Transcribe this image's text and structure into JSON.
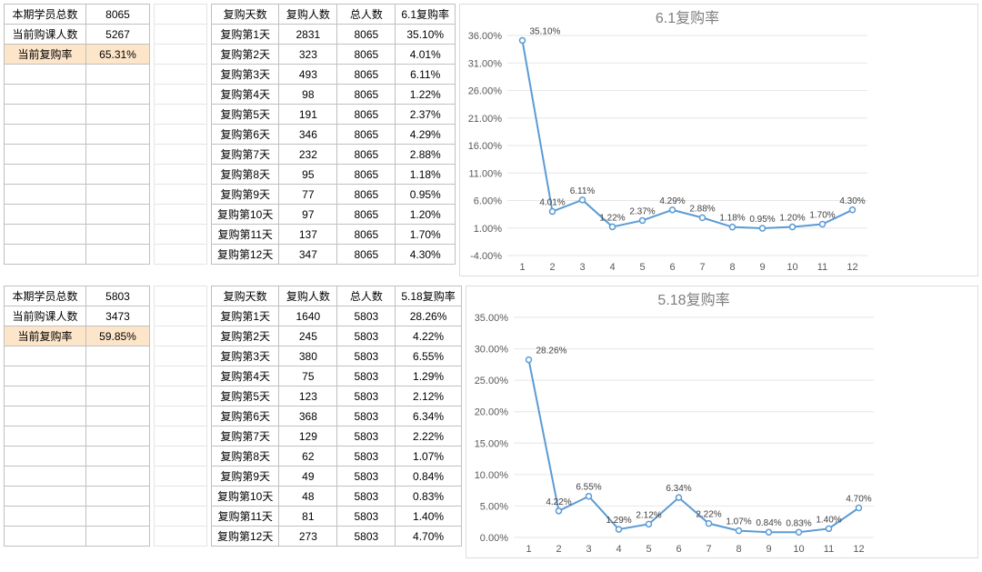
{
  "sections": [
    {
      "id": "s61",
      "summary": {
        "rows": [
          {
            "label": "本期学员总数",
            "value": "8065"
          },
          {
            "label": "当前购课人数",
            "value": "5267"
          },
          {
            "label": "当前复购率",
            "value": "65.31%",
            "highlight": true
          }
        ]
      },
      "table": {
        "headers": [
          "复购天数",
          "复购人数",
          "总人数",
          "6.1复购率"
        ],
        "rows": [
          [
            "复购第1天",
            "2831",
            "8065",
            "35.10%"
          ],
          [
            "复购第2天",
            "323",
            "8065",
            "4.01%"
          ],
          [
            "复购第3天",
            "493",
            "8065",
            "6.11%"
          ],
          [
            "复购第4天",
            "98",
            "8065",
            "1.22%"
          ],
          [
            "复购第5天",
            "191",
            "8065",
            "2.37%"
          ],
          [
            "复购第6天",
            "346",
            "8065",
            "4.29%"
          ],
          [
            "复购第7天",
            "232",
            "8065",
            "2.88%"
          ],
          [
            "复购第8天",
            "95",
            "8065",
            "1.18%"
          ],
          [
            "复购第9天",
            "77",
            "8065",
            "0.95%"
          ],
          [
            "复购第10天",
            "97",
            "8065",
            "1.20%"
          ],
          [
            "复购第11天",
            "137",
            "8065",
            "1.70%"
          ],
          [
            "复购第12天",
            "347",
            "8065",
            "4.30%"
          ]
        ]
      },
      "chart": {
        "type": "line",
        "title": "6.1复购率",
        "title_color": "#7f7f7f",
        "title_fontsize": 16,
        "background_color": "#ffffff",
        "grid_color": "#e6e6e6",
        "line_color": "#5b9bd5",
        "marker_color": "#5b9bd5",
        "label_color": "#404040",
        "label_fontsize": 10,
        "axis_fontsize": 11,
        "x_categories": [
          1,
          2,
          3,
          4,
          5,
          6,
          7,
          8,
          9,
          10,
          11,
          12
        ],
        "y_ticks": [
          -4,
          1,
          6,
          11,
          16,
          21,
          26,
          31,
          36
        ],
        "y_tick_labels": [
          "-4.00%",
          "1.00%",
          "6.00%",
          "11.00%",
          "16.00%",
          "21.00%",
          "26.00%",
          "31.00%",
          "36.00%"
        ],
        "ylim": [
          -4,
          36
        ],
        "values": [
          35.1,
          4.01,
          6.11,
          1.22,
          2.37,
          4.29,
          2.88,
          1.18,
          0.95,
          1.2,
          1.7,
          4.3
        ],
        "value_labels": [
          "35.10%",
          "4.01%",
          "6.11%",
          "1.22%",
          "2.37%",
          "4.29%",
          "2.88%",
          "1.18%",
          "0.95%",
          "1.20%",
          "1.70%",
          "4.30%"
        ]
      }
    },
    {
      "id": "s518",
      "summary": {
        "rows": [
          {
            "label": "本期学员总数",
            "value": "5803"
          },
          {
            "label": "当前购课人数",
            "value": "3473"
          },
          {
            "label": "当前复购率",
            "value": "59.85%",
            "highlight": true
          }
        ]
      },
      "table": {
        "headers": [
          "复购天数",
          "复购人数",
          "总人数",
          "5.18复购率"
        ],
        "rows": [
          [
            "复购第1天",
            "1640",
            "5803",
            "28.26%"
          ],
          [
            "复购第2天",
            "245",
            "5803",
            "4.22%"
          ],
          [
            "复购第3天",
            "380",
            "5803",
            "6.55%"
          ],
          [
            "复购第4天",
            "75",
            "5803",
            "1.29%"
          ],
          [
            "复购第5天",
            "123",
            "5803",
            "2.12%"
          ],
          [
            "复购第6天",
            "368",
            "5803",
            "6.34%"
          ],
          [
            "复购第7天",
            "129",
            "5803",
            "2.22%"
          ],
          [
            "复购第8天",
            "62",
            "5803",
            "1.07%"
          ],
          [
            "复购第9天",
            "49",
            "5803",
            "0.84%"
          ],
          [
            "复购第10天",
            "48",
            "5803",
            "0.83%"
          ],
          [
            "复购第11天",
            "81",
            "5803",
            "1.40%"
          ],
          [
            "复购第12天",
            "273",
            "5803",
            "4.70%"
          ]
        ]
      },
      "chart": {
        "type": "line",
        "title": "5.18复购率",
        "title_color": "#7f7f7f",
        "title_fontsize": 16,
        "background_color": "#ffffff",
        "grid_color": "#e6e6e6",
        "line_color": "#5b9bd5",
        "marker_color": "#5b9bd5",
        "label_color": "#404040",
        "label_fontsize": 10,
        "axis_fontsize": 11,
        "x_categories": [
          1,
          2,
          3,
          4,
          5,
          6,
          7,
          8,
          9,
          10,
          11,
          12
        ],
        "y_ticks": [
          0,
          5,
          10,
          15,
          20,
          25,
          30,
          35
        ],
        "y_tick_labels": [
          "0.00%",
          "5.00%",
          "10.00%",
          "15.00%",
          "20.00%",
          "25.00%",
          "30.00%",
          "35.00%"
        ],
        "ylim": [
          0,
          35
        ],
        "values": [
          28.26,
          4.22,
          6.55,
          1.29,
          2.12,
          6.34,
          2.22,
          1.07,
          0.84,
          0.83,
          1.4,
          4.7
        ],
        "value_labels": [
          "28.26%",
          "4.22%",
          "6.55%",
          "1.29%",
          "2.12%",
          "6.34%",
          "2.22%",
          "1.07%",
          "0.84%",
          "0.83%",
          "1.40%",
          "4.70%"
        ]
      }
    }
  ]
}
